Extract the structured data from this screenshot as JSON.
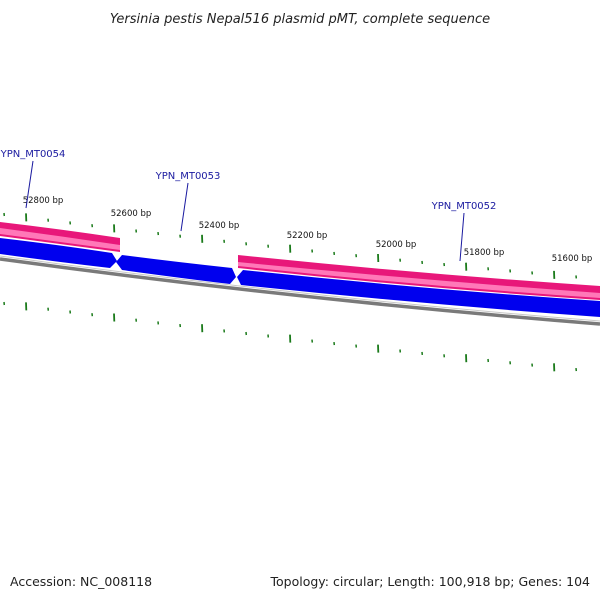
{
  "title": "Yersinia pestis Nepal516 plasmid pMT, complete sequence",
  "footer": {
    "accession": "Accession: NC_008118",
    "summary": "Topology: circular; Length: 100,918 bp; Genes: 104"
  },
  "bp_labels": [
    "52800 bp",
    "52600 bp",
    "52400 bp",
    "52200 bp",
    "52000 bp",
    "51800 bp",
    "51600 bp"
  ],
  "genes": [
    "YPN_MT0054",
    "YPN_MT0053",
    "YPN_MT0052"
  ],
  "colors": {
    "pink_feature": "#e8177a",
    "blue_feature": "#0000ee",
    "backbone": "#7f7f7f",
    "ticks": "#1a7a1a",
    "gene_label": "#1a1aa0"
  }
}
